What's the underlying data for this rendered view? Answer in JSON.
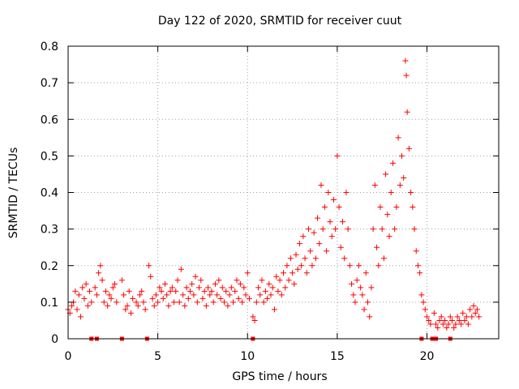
{
  "chart_data": {
    "type": "scatter",
    "title": "Day 122 of 2020, SRMTID for receiver cuut",
    "xlabel": "GPS time / hours",
    "ylabel": "SRMTID / TECUs",
    "xlim": [
      0,
      24
    ],
    "ylim": [
      0,
      0.8
    ],
    "xticks": [
      "0",
      "5",
      "10",
      "15",
      "20"
    ],
    "xtick_values": [
      0,
      5,
      10,
      15,
      20
    ],
    "yticks": [
      "0",
      "0.1",
      "0.2",
      "0.3",
      "0.4",
      "0.5",
      "0.6",
      "0.7",
      "0.8"
    ],
    "ytick_values": [
      0,
      0.1,
      0.2,
      0.3,
      0.4,
      0.5,
      0.6,
      0.7,
      0.8
    ],
    "grid": true,
    "marker": "+",
    "color": "#ff0000",
    "series": [
      {
        "name": "SRMTID",
        "points": [
          [
            0.0,
            0.08
          ],
          [
            0.1,
            0.07
          ],
          [
            0.2,
            0.09
          ],
          [
            0.3,
            0.1
          ],
          [
            0.4,
            0.13
          ],
          [
            0.5,
            0.08
          ],
          [
            0.6,
            0.12
          ],
          [
            0.7,
            0.06
          ],
          [
            0.8,
            0.14
          ],
          [
            0.9,
            0.11
          ],
          [
            1.0,
            0.15
          ],
          [
            1.1,
            0.09
          ],
          [
            1.2,
            0.13
          ],
          [
            1.3,
            0.1
          ],
          [
            1.5,
            0.14
          ],
          [
            1.6,
            0.12
          ],
          [
            1.7,
            0.18
          ],
          [
            1.8,
            0.2
          ],
          [
            1.9,
            0.16
          ],
          [
            2.0,
            0.1
          ],
          [
            2.1,
            0.13
          ],
          [
            2.2,
            0.09
          ],
          [
            2.3,
            0.12
          ],
          [
            2.4,
            0.11
          ],
          [
            2.5,
            0.14
          ],
          [
            2.6,
            0.15
          ],
          [
            2.7,
            0.1
          ],
          [
            3.0,
            0.16
          ],
          [
            3.1,
            0.12
          ],
          [
            3.2,
            0.08
          ],
          [
            3.3,
            0.09
          ],
          [
            3.4,
            0.13
          ],
          [
            3.5,
            0.07
          ],
          [
            3.6,
            0.11
          ],
          [
            3.8,
            0.1
          ],
          [
            3.9,
            0.09
          ],
          [
            4.0,
            0.12
          ],
          [
            4.1,
            0.13
          ],
          [
            4.2,
            0.1
          ],
          [
            4.3,
            0.08
          ],
          [
            4.5,
            0.2
          ],
          [
            4.6,
            0.17
          ],
          [
            4.7,
            0.11
          ],
          [
            4.8,
            0.09
          ],
          [
            4.9,
            0.12
          ],
          [
            5.0,
            0.1
          ],
          [
            5.1,
            0.14
          ],
          [
            5.2,
            0.13
          ],
          [
            5.3,
            0.11
          ],
          [
            5.4,
            0.15
          ],
          [
            5.5,
            0.12
          ],
          [
            5.6,
            0.09
          ],
          [
            5.7,
            0.13
          ],
          [
            5.8,
            0.14
          ],
          [
            5.9,
            0.1
          ],
          [
            6.0,
            0.13
          ],
          [
            6.1,
            0.16
          ],
          [
            6.2,
            0.1
          ],
          [
            6.3,
            0.19
          ],
          [
            6.4,
            0.12
          ],
          [
            6.5,
            0.09
          ],
          [
            6.6,
            0.14
          ],
          [
            6.7,
            0.11
          ],
          [
            6.8,
            0.13
          ],
          [
            6.9,
            0.15
          ],
          [
            7.0,
            0.12
          ],
          [
            7.1,
            0.17
          ],
          [
            7.2,
            0.1
          ],
          [
            7.3,
            0.14
          ],
          [
            7.4,
            0.16
          ],
          [
            7.5,
            0.11
          ],
          [
            7.6,
            0.13
          ],
          [
            7.7,
            0.09
          ],
          [
            7.8,
            0.14
          ],
          [
            7.9,
            0.12
          ],
          [
            8.0,
            0.13
          ],
          [
            8.1,
            0.1
          ],
          [
            8.2,
            0.15
          ],
          [
            8.3,
            0.12
          ],
          [
            8.4,
            0.16
          ],
          [
            8.5,
            0.11
          ],
          [
            8.6,
            0.14
          ],
          [
            8.7,
            0.1
          ],
          [
            8.8,
            0.13
          ],
          [
            8.9,
            0.09
          ],
          [
            9.0,
            0.12
          ],
          [
            9.1,
            0.14
          ],
          [
            9.2,
            0.1
          ],
          [
            9.3,
            0.13
          ],
          [
            9.4,
            0.16
          ],
          [
            9.5,
            0.11
          ],
          [
            9.6,
            0.15
          ],
          [
            9.7,
            0.1
          ],
          [
            9.8,
            0.14
          ],
          [
            9.9,
            0.12
          ],
          [
            10.0,
            0.18
          ],
          [
            10.1,
            0.11
          ],
          [
            10.3,
            0.06
          ],
          [
            10.4,
            0.05
          ],
          [
            10.5,
            0.1
          ],
          [
            10.6,
            0.14
          ],
          [
            10.7,
            0.12
          ],
          [
            10.8,
            0.16
          ],
          [
            10.9,
            0.1
          ],
          [
            11.0,
            0.13
          ],
          [
            11.1,
            0.11
          ],
          [
            11.2,
            0.15
          ],
          [
            11.3,
            0.12
          ],
          [
            11.4,
            0.14
          ],
          [
            11.5,
            0.08
          ],
          [
            11.6,
            0.17
          ],
          [
            11.7,
            0.13
          ],
          [
            11.8,
            0.16
          ],
          [
            11.9,
            0.12
          ],
          [
            12.0,
            0.18
          ],
          [
            12.1,
            0.14
          ],
          [
            12.2,
            0.2
          ],
          [
            12.3,
            0.16
          ],
          [
            12.4,
            0.22
          ],
          [
            12.5,
            0.18
          ],
          [
            12.6,
            0.15
          ],
          [
            12.7,
            0.23
          ],
          [
            12.8,
            0.19
          ],
          [
            12.9,
            0.26
          ],
          [
            13.0,
            0.2
          ],
          [
            13.1,
            0.28
          ],
          [
            13.2,
            0.22
          ],
          [
            13.3,
            0.18
          ],
          [
            13.4,
            0.3
          ],
          [
            13.5,
            0.24
          ],
          [
            13.6,
            0.2
          ],
          [
            13.7,
            0.29
          ],
          [
            13.8,
            0.22
          ],
          [
            13.9,
            0.33
          ],
          [
            14.0,
            0.26
          ],
          [
            14.1,
            0.42
          ],
          [
            14.2,
            0.3
          ],
          [
            14.3,
            0.36
          ],
          [
            14.4,
            0.24
          ],
          [
            14.5,
            0.4
          ],
          [
            14.6,
            0.32
          ],
          [
            14.7,
            0.28
          ],
          [
            14.8,
            0.38
          ],
          [
            14.9,
            0.3
          ],
          [
            15.0,
            0.5
          ],
          [
            15.1,
            0.36
          ],
          [
            15.2,
            0.25
          ],
          [
            15.3,
            0.32
          ],
          [
            15.4,
            0.22
          ],
          [
            15.5,
            0.4
          ],
          [
            15.6,
            0.3
          ],
          [
            15.7,
            0.2
          ],
          [
            15.8,
            0.15
          ],
          [
            15.9,
            0.12
          ],
          [
            16.0,
            0.1
          ],
          [
            16.1,
            0.16
          ],
          [
            16.2,
            0.2
          ],
          [
            16.3,
            0.14
          ],
          [
            16.4,
            0.12
          ],
          [
            16.5,
            0.08
          ],
          [
            16.6,
            0.18
          ],
          [
            16.7,
            0.1
          ],
          [
            16.8,
            0.06
          ],
          [
            16.9,
            0.14
          ],
          [
            17.0,
            0.3
          ],
          [
            17.1,
            0.42
          ],
          [
            17.2,
            0.25
          ],
          [
            17.3,
            0.2
          ],
          [
            17.4,
            0.36
          ],
          [
            17.5,
            0.3
          ],
          [
            17.6,
            0.22
          ],
          [
            17.7,
            0.45
          ],
          [
            17.8,
            0.34
          ],
          [
            17.9,
            0.28
          ],
          [
            18.0,
            0.4
          ],
          [
            18.1,
            0.48
          ],
          [
            18.2,
            0.3
          ],
          [
            18.3,
            0.36
          ],
          [
            18.4,
            0.55
          ],
          [
            18.5,
            0.42
          ],
          [
            18.6,
            0.5
          ],
          [
            18.7,
            0.44
          ],
          [
            18.8,
            0.76
          ],
          [
            18.85,
            0.72
          ],
          [
            18.9,
            0.62
          ],
          [
            19.0,
            0.52
          ],
          [
            19.1,
            0.4
          ],
          [
            19.2,
            0.36
          ],
          [
            19.3,
            0.3
          ],
          [
            19.4,
            0.24
          ],
          [
            19.5,
            0.2
          ],
          [
            19.6,
            0.18
          ],
          [
            19.7,
            0.12
          ],
          [
            19.8,
            0.1
          ],
          [
            19.9,
            0.08
          ],
          [
            20.0,
            0.06
          ],
          [
            20.1,
            0.05
          ],
          [
            20.2,
            0.04
          ],
          [
            20.4,
            0.07
          ],
          [
            20.5,
            0.04
          ],
          [
            20.6,
            0.03
          ],
          [
            20.7,
            0.05
          ],
          [
            20.8,
            0.06
          ],
          [
            20.9,
            0.04
          ],
          [
            21.0,
            0.05
          ],
          [
            21.1,
            0.03
          ],
          [
            21.2,
            0.04
          ],
          [
            21.3,
            0.06
          ],
          [
            21.4,
            0.05
          ],
          [
            21.5,
            0.03
          ],
          [
            21.6,
            0.04
          ],
          [
            21.7,
            0.06
          ],
          [
            21.8,
            0.05
          ],
          [
            21.9,
            0.04
          ],
          [
            22.0,
            0.07
          ],
          [
            22.1,
            0.05
          ],
          [
            22.2,
            0.06
          ],
          [
            22.3,
            0.04
          ],
          [
            22.4,
            0.08
          ],
          [
            22.5,
            0.06
          ],
          [
            22.6,
            0.09
          ],
          [
            22.7,
            0.07
          ],
          [
            22.8,
            0.08
          ],
          [
            22.9,
            0.06
          ]
        ]
      }
    ],
    "gap_markers_x": [
      1.3,
      1.6,
      3.0,
      4.4,
      10.3,
      19.7,
      20.3,
      20.5,
      21.3
    ]
  }
}
